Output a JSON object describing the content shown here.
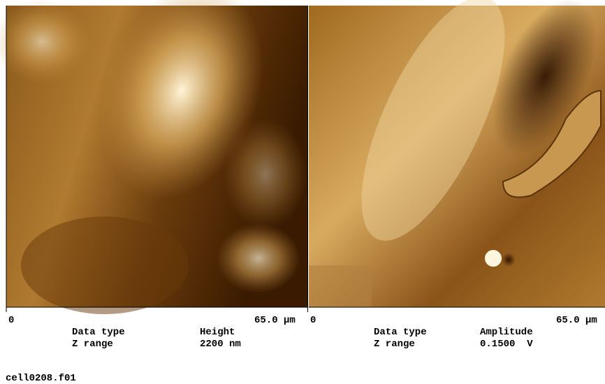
{
  "panels": [
    {
      "axis_start": "0",
      "axis_end": "65.0 µm",
      "data_type_label": "Data type",
      "data_type": "Height",
      "z_range_label": "Z range",
      "z_range": "2200 nm"
    },
    {
      "axis_start": "0",
      "axis_end": "65.0 µm",
      "data_type_label": "Data type",
      "data_type": "Amplitude",
      "z_range_label": "Z range",
      "z_range": "0.1500  V"
    }
  ],
  "filename": "cell0208.f01"
}
